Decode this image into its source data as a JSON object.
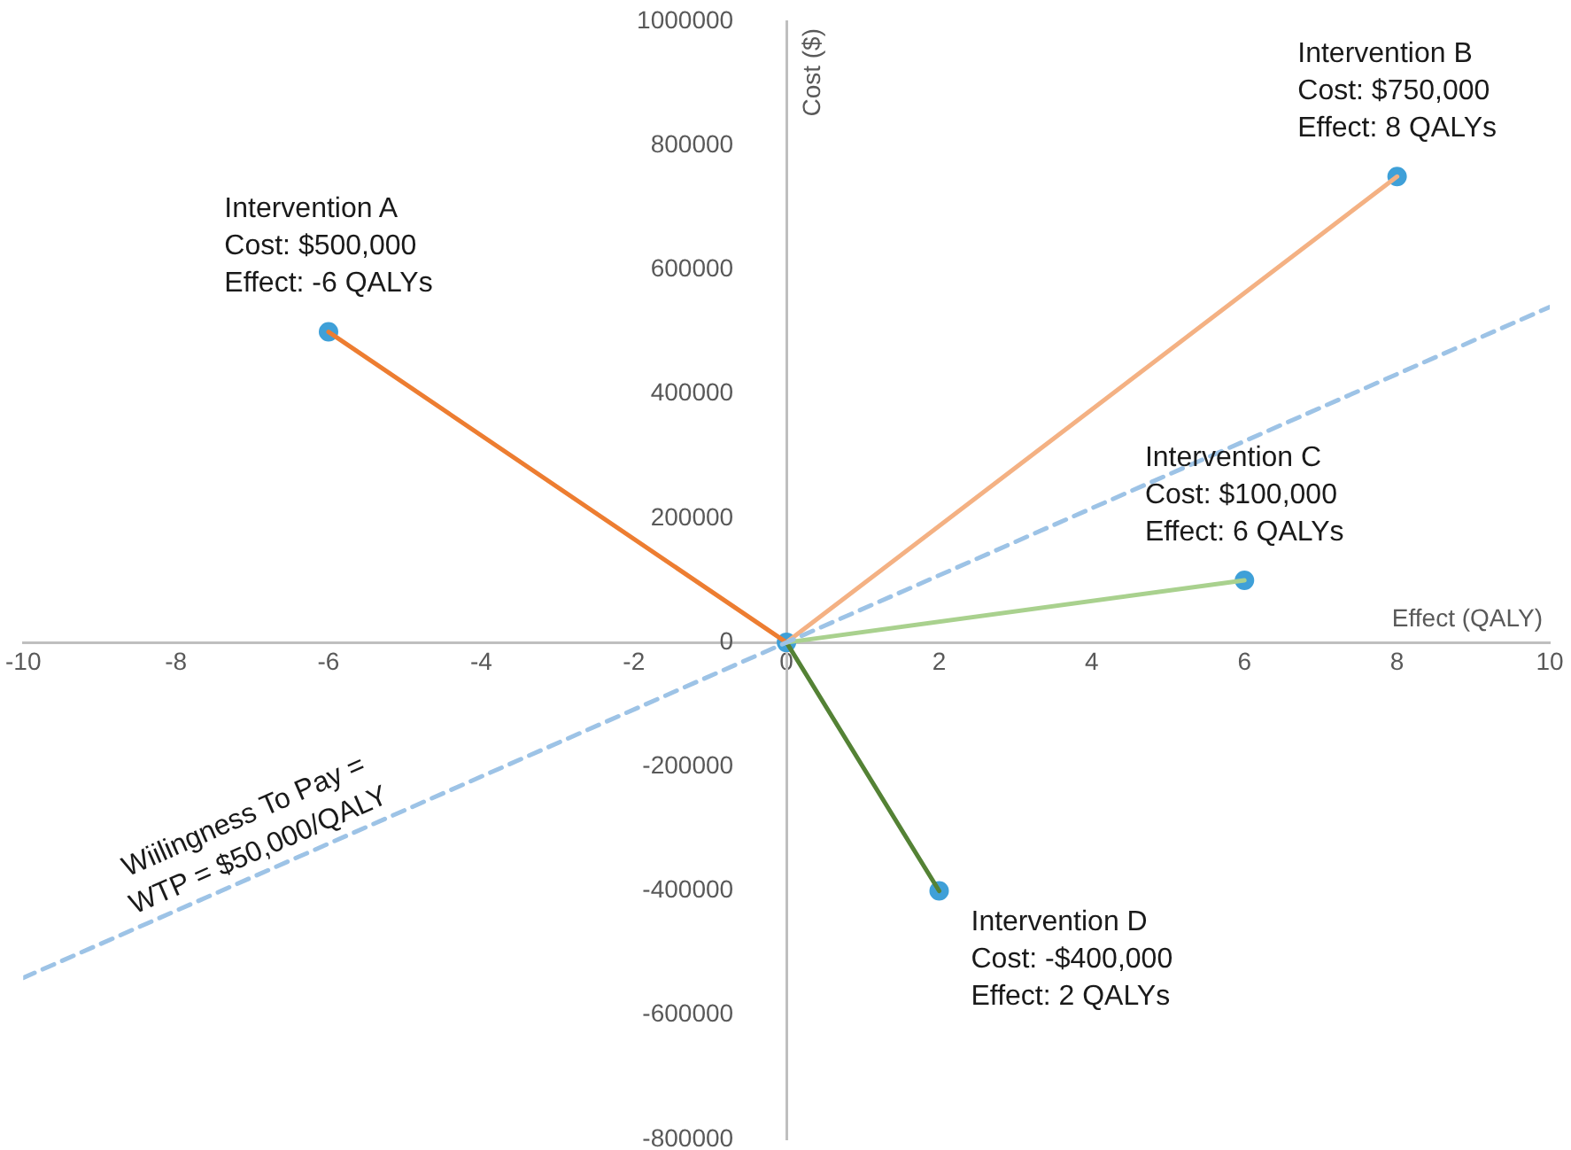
{
  "chart_data": {
    "type": "line",
    "xlabel": "Effect (QALY)",
    "ylabel": "Cost ($)",
    "xlim": [
      -10,
      10
    ],
    "xticks": [
      -10,
      -8,
      -6,
      -4,
      -2,
      0,
      2,
      4,
      6,
      8,
      10
    ],
    "ylim": [
      -800000,
      1000000
    ],
    "yticks": [
      -800000,
      -600000,
      -400000,
      -200000,
      0,
      200000,
      400000,
      600000,
      800000,
      1000000
    ],
    "marker": "none",
    "line_style": "solid",
    "series": [
      {
        "color": "#9dc3e6",
        "name": "Wiilingness To Pay =\nWTP = $50,000/QALY",
        "line_style": "dashed",
        "x": [
          -10,
          10
        ],
        "values": [
          -540000,
          540000
        ]
      },
      {
        "color": "#ed7d31",
        "x": [
          0,
          -6
        ],
        "values": [
          0,
          500000
        ]
      },
      {
        "color": "#f4b183",
        "x": [
          0,
          8
        ],
        "values": [
          0,
          750000
        ]
      },
      {
        "color": "#a9d18e",
        "x": [
          0,
          6
        ],
        "values": [
          0,
          100000
        ]
      },
      {
        "color": "#548235",
        "x": [
          0,
          2
        ],
        "values": [
          0,
          -400000
        ]
      },
      {
        "type": "scatter",
        "marker": "circle",
        "color": "#3fa0d8",
        "x": [
          0,
          -6,
          8,
          6,
          2
        ],
        "values": [
          0,
          500000,
          750000,
          100000,
          -400000
        ]
      }
    ],
    "annotations": [
      {
        "text": "Intervention A\nCost: $500,000\nEffect: -6 QALYs",
        "x": -6,
        "y": 500000
      },
      {
        "text": "Intervention B\nCost: $750,000\nEffect: 8 QALYs",
        "x": 8,
        "y": 750000
      },
      {
        "text": "Intervention C\nCost: $100,000\nEffect: 6 QALYs",
        "x": 6,
        "y": 100000
      },
      {
        "text": "Intervention D\nCost: -$400,000\nEffect: 2 QALYs",
        "x": 2,
        "y": -400000
      }
    ]
  }
}
